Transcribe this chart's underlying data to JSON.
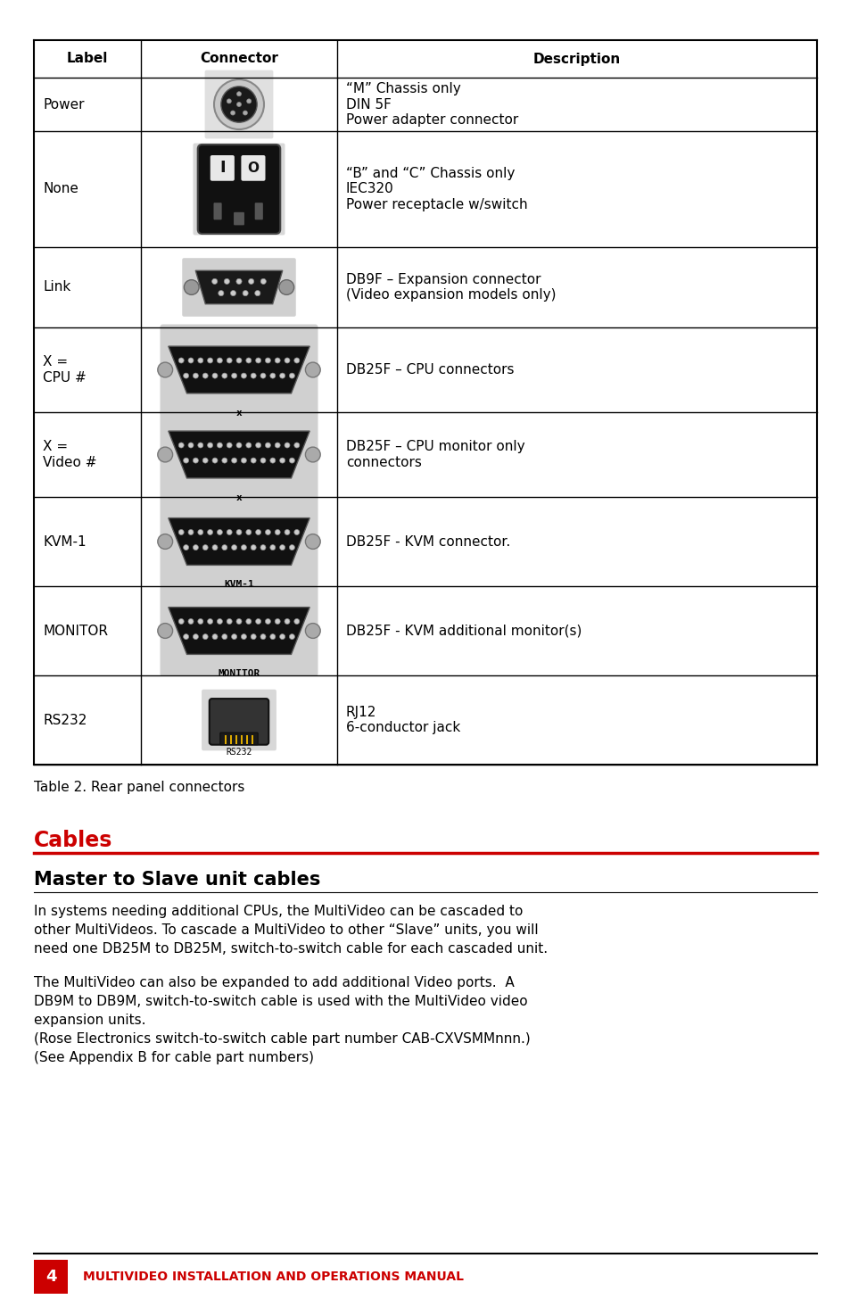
{
  "page_bg": "#ffffff",
  "rows": [
    {
      "label": "Power",
      "connector_type": "din5",
      "description": "“M” Chassis only\nDIN 5F\nPower adapter connector"
    },
    {
      "label": "None",
      "connector_type": "iec320",
      "description": "“B” and “C” Chassis only\nIEC320\nPower receptacle w/switch"
    },
    {
      "label": "Link",
      "connector_type": "db9",
      "description": "DB9F – Expansion connector\n(Video expansion models only)"
    },
    {
      "label": "X =\nCPU #",
      "connector_type": "db25_x",
      "description": "DB25F – CPU connectors"
    },
    {
      "label": "X =\nVideo #",
      "connector_type": "db25_x",
      "description": "DB25F – CPU monitor only\nconnectors"
    },
    {
      "label": "KVM-1",
      "connector_type": "db25_kvm1",
      "description": "DB25F - KVM connector."
    },
    {
      "label": "MONITOR",
      "connector_type": "db25_monitor",
      "description": "DB25F - KVM additional monitor(s)"
    },
    {
      "label": "RS232",
      "connector_type": "rj12",
      "description": "RJ12\n6-conductor jack"
    }
  ],
  "table_caption": "Table 2. Rear panel connectors",
  "section_title": "Cables",
  "subsection_title": "Master to Slave unit cables",
  "para1": "In systems needing additional CPUs, the MultiVideo can be cascaded to\nother MultiVideos. To cascade a MultiVideo to other “Slave” units, you will\nneed one DB25M to DB25M, switch-to-switch cable for each cascaded unit.",
  "para2": "The MultiVideo can also be expanded to add additional Video ports.  A\nDB9M to DB9M, switch-to-switch cable is used with the MultiVideo video\nexpansion units.\n(Rose Electronics switch-to-switch cable part number CAB-CXVSMMnnn.)\n(See Appendix B for cable part numbers)",
  "footer_number": "4",
  "footer_text": "MULTIVIDEO INSTALLATION AND OPERATIONS MANUAL",
  "red_color": "#cc0000",
  "black_color": "#000000"
}
